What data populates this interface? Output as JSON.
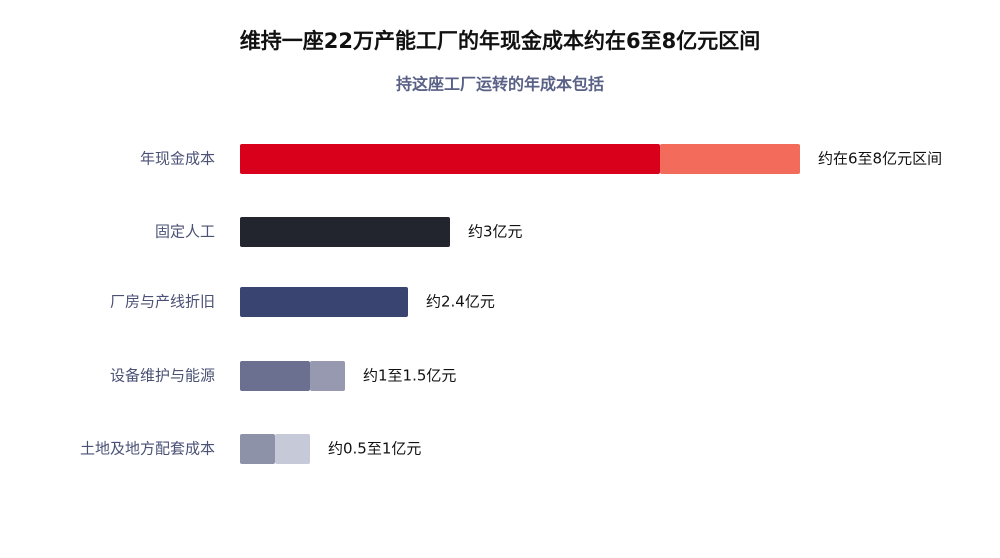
{
  "chart_data": {
    "type": "range-bar",
    "title": "维持一座22万产能工厂的年现金成本约在6至8亿元区间",
    "subtitle": "持这座工厂运转的年成本包括",
    "categories": [
      "年现金成本",
      "固定人工",
      "厂房与产线折旧",
      "设备维护与能源",
      "土地及地方配套成本"
    ],
    "low": [
      6,
      3,
      2.4,
      1,
      0.5
    ],
    "high": [
      8,
      null,
      null,
      1.5,
      1
    ],
    "value_labels": [
      "约在6至8亿元区间",
      "约3亿元",
      "约2.4亿元",
      "约1至1.5亿元",
      "约0.5至1亿元"
    ],
    "colors": [
      "#d9001b",
      "#23252e",
      "#3a4470",
      "#6b6f90",
      "#8e92a8"
    ],
    "range_colors": [
      "#f26b5b",
      null,
      null,
      "#9699af",
      "#c6c9d7"
    ]
  }
}
